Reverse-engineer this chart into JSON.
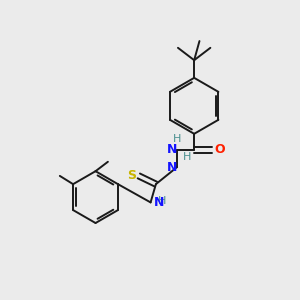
{
  "background_color": "#ebebeb",
  "bond_color": "#1a1a1a",
  "N_color": "#1414ff",
  "O_color": "#ff2000",
  "S_color": "#c8b400",
  "H_color": "#4a9090",
  "figsize": [
    3.0,
    3.0
  ],
  "dpi": 100,
  "xlim": [
    0,
    10
  ],
  "ylim": [
    0,
    10
  ]
}
